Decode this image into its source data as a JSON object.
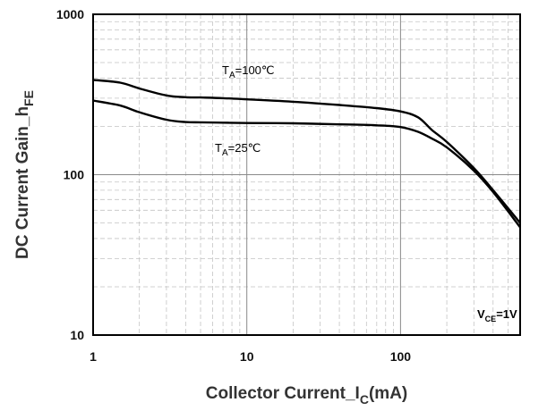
{
  "chart_data": {
    "type": "line",
    "title": "",
    "xlabel": {
      "main": "Collector Current_I",
      "sub": "C",
      "unit": "(mA)"
    },
    "ylabel": {
      "main": "DC Current Gain_h",
      "sub": "FE"
    },
    "xscale": "log",
    "yscale": "log",
    "xlim": [
      1,
      600
    ],
    "ylim": [
      10,
      1000
    ],
    "x_ticks": [
      1,
      10,
      100
    ],
    "x_tick_labels": [
      "1",
      "10",
      "100"
    ],
    "y_ticks": [
      10,
      100,
      1000
    ],
    "y_tick_labels": [
      "10",
      "100",
      "1000"
    ],
    "grid": true,
    "legend": "none",
    "series": [
      {
        "name": "T_A=100℃",
        "x": [
          1,
          1.5,
          2,
          3,
          4,
          5,
          7,
          10,
          20,
          40,
          70,
          100,
          130,
          160,
          200,
          300,
          400,
          600
        ],
        "y": [
          390,
          375,
          345,
          312,
          304,
          303,
          300,
          295,
          285,
          272,
          260,
          248,
          228,
          190,
          160,
          110,
          80,
          50
        ]
      },
      {
        "name": "T_A=25℃",
        "x": [
          1,
          1.5,
          2,
          3,
          4,
          5,
          7,
          10,
          20,
          40,
          70,
          100,
          130,
          160,
          200,
          300,
          400,
          600
        ],
        "y": [
          290,
          270,
          245,
          220,
          213,
          212,
          211,
          210,
          209,
          206,
          203,
          198,
          185,
          168,
          148,
          106,
          78,
          47
        ]
      }
    ],
    "annotations": [
      {
        "id": "t100",
        "main": "T",
        "sub": "A",
        "rest": "=100℃"
      },
      {
        "id": "t25",
        "main": "T",
        "sub": "A",
        "rest": "=25℃"
      },
      {
        "id": "vce",
        "main": "V",
        "sub": "CE",
        "rest": "=1V"
      }
    ]
  }
}
